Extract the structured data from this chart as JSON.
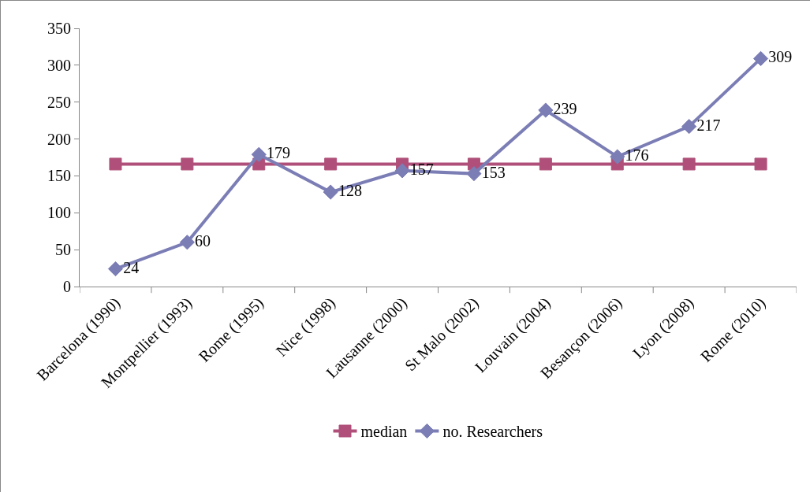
{
  "chart_data": {
    "type": "line",
    "categories": [
      "Barcelona (1990)",
      "Montpellier (1993)",
      "Rome (1995)",
      "Nice (1998)",
      "Lausanne (2000)",
      "St Malo (2002)",
      "Louvain (2004)",
      "Besançon (2006)",
      "Lyon (2008)",
      "Rome (2010)"
    ],
    "series": [
      {
        "name": "no. Researchers",
        "color": "#7b7db5",
        "marker": "diamond",
        "values": [
          24,
          60,
          179,
          128,
          157,
          153,
          239,
          176,
          217,
          309
        ],
        "value_labels": [
          "24",
          "60",
          "179",
          "128",
          "157",
          "153",
          "239",
          "176",
          "217",
          "309"
        ]
      },
      {
        "name": "median",
        "color": "#b0507a",
        "marker": "square",
        "values": [
          166,
          166,
          166,
          166,
          166,
          166,
          166,
          166,
          166,
          166
        ]
      }
    ],
    "ylim": [
      0,
      350
    ],
    "yticks": [
      0,
      50,
      100,
      150,
      200,
      250,
      300,
      350
    ],
    "grid": false,
    "legend": "bottom",
    "line_style": "solid"
  }
}
